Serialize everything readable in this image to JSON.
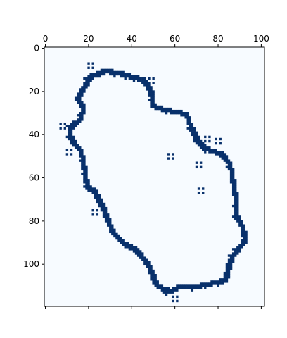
{
  "chart_data": {
    "type": "heatmap",
    "title": "",
    "xlabel": "",
    "ylabel": "",
    "x_range": [
      -0.5,
      101.5
    ],
    "y_range": [
      -0.5,
      119.5
    ],
    "x_axis_position": "top",
    "y_inverted": true,
    "x_ticks": [
      0,
      20,
      40,
      60,
      80,
      100
    ],
    "y_ticks": [
      0,
      20,
      40,
      60,
      80,
      100
    ],
    "colormap": {
      "background": "#f7fbff",
      "foreground": "#08306b"
    },
    "shape": "closed irregular contour (binary mask)",
    "contour_points": [
      [
        20,
        13
      ],
      [
        27,
        10
      ],
      [
        33,
        11
      ],
      [
        40,
        13
      ],
      [
        45,
        14
      ],
      [
        47,
        17
      ],
      [
        49,
        21
      ],
      [
        49,
        26
      ],
      [
        55,
        28
      ],
      [
        60,
        29
      ],
      [
        65,
        30
      ],
      [
        67,
        36
      ],
      [
        71,
        44
      ],
      [
        76,
        47
      ],
      [
        81,
        48
      ],
      [
        85,
        53
      ],
      [
        86,
        58
      ],
      [
        87,
        63
      ],
      [
        88,
        70
      ],
      [
        88,
        77
      ],
      [
        91,
        82
      ],
      [
        92,
        88
      ],
      [
        89,
        92
      ],
      [
        86,
        96
      ],
      [
        84,
        102
      ],
      [
        83,
        107
      ],
      [
        79,
        108
      ],
      [
        73,
        109
      ],
      [
        69,
        110
      ],
      [
        61,
        110
      ],
      [
        57,
        112
      ],
      [
        52,
        110
      ],
      [
        50,
        107
      ],
      [
        49,
        103
      ],
      [
        46,
        98
      ],
      [
        42,
        93
      ],
      [
        36,
        90
      ],
      [
        31,
        85
      ],
      [
        29,
        80
      ],
      [
        27,
        75
      ],
      [
        25,
        71
      ],
      [
        23,
        66
      ],
      [
        19,
        64
      ],
      [
        18,
        58
      ],
      [
        17,
        52
      ],
      [
        16,
        47
      ],
      [
        13,
        44
      ],
      [
        11,
        40
      ],
      [
        11,
        36
      ],
      [
        16,
        32
      ],
      [
        17,
        26
      ],
      [
        14,
        23
      ]
    ],
    "speckles": [
      [
        20,
        7
      ],
      [
        37,
        12
      ],
      [
        48,
        14
      ],
      [
        57,
        49
      ],
      [
        70,
        53
      ],
      [
        71,
        65
      ],
      [
        74,
        41
      ],
      [
        79,
        42
      ],
      [
        7,
        35
      ],
      [
        10,
        47
      ],
      [
        22,
        75
      ],
      [
        59,
        115
      ]
    ]
  }
}
